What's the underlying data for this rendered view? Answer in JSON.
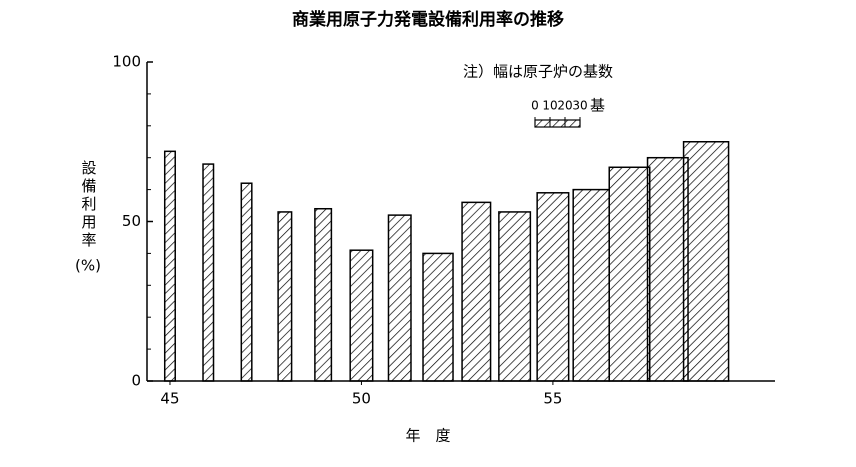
{
  "chart_data": {
    "type": "variable-width-bar",
    "title": "商業用原子力発電設備利用率の推移",
    "y_label": "設備利用率",
    "y_unit": "(%)",
    "x_label": "年　度",
    "note": "注）幅は原子炉の基数",
    "x": [
      45,
      46,
      47,
      48,
      49,
      50,
      51,
      52,
      53,
      54,
      55,
      56,
      57,
      58,
      59
    ],
    "values": [
      72,
      68,
      62,
      53,
      54,
      41,
      52,
      40,
      56,
      53,
      59,
      60,
      67,
      70,
      75
    ],
    "widths": [
      7,
      7,
      7,
      9,
      11,
      15,
      15,
      20,
      19,
      21,
      21,
      24,
      27,
      27,
      30
    ],
    "width_scale": {
      "ticks": [
        0,
        10,
        20,
        30
      ],
      "unit": "基"
    },
    "xlim": [
      44.4,
      60.8
    ],
    "xticks": [
      45,
      50,
      55
    ],
    "ylim": [
      0,
      100
    ],
    "yticks": [
      0,
      50,
      100
    ],
    "y_minor_ticks": [
      10,
      20,
      30,
      40,
      60,
      70,
      80,
      90
    ],
    "color": "#000000",
    "hatch": true
  }
}
